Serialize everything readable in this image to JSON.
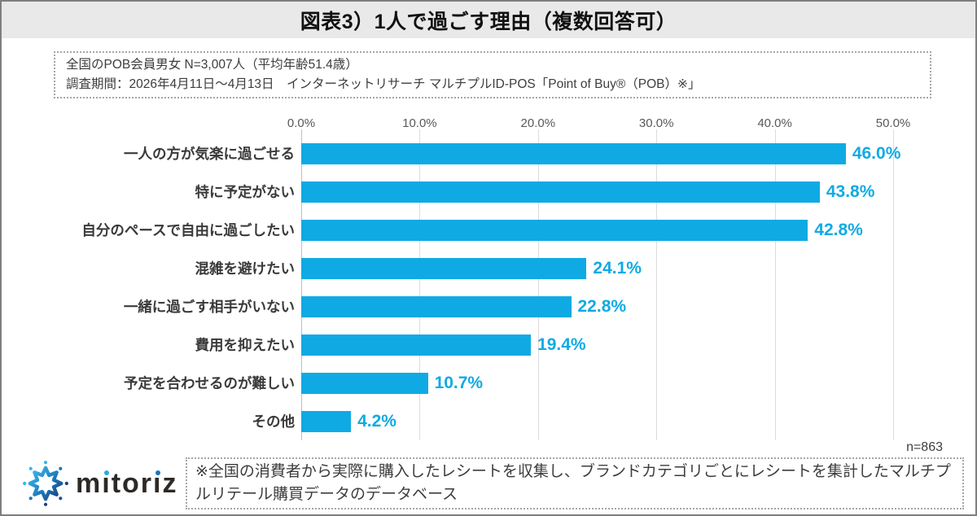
{
  "title": "図表3）1人で過ごす理由（複数回答可）",
  "survey_box": {
    "line1": "全国のPOB会員男女 N=3,007人（平均年齢51.4歳）",
    "line2": "調査期間：2026年4月11日～4月13日　インターネットリサーチ マルチプルID-POS「Point of Buy®（POB）※」"
  },
  "chart_data": {
    "type": "bar",
    "orientation": "horizontal",
    "title": "図表3）1人で過ごす理由（複数回答可）",
    "categories": [
      "一人の方が気楽に過ごせる",
      "特に予定がない",
      "自分のペースで自由に過ごしたい",
      "混雑を避けたい",
      "一緒に過ごす相手がいない",
      "費用を抑えたい",
      "予定を合わせるのが難しい",
      "その他"
    ],
    "values": [
      46.0,
      43.8,
      42.8,
      24.1,
      22.8,
      19.4,
      10.7,
      4.2
    ],
    "value_labels": [
      "46.0%",
      "43.8%",
      "42.8%",
      "24.1%",
      "22.8%",
      "19.4%",
      "10.7%",
      "4.2%"
    ],
    "x_ticks": [
      "0.0%",
      "10.0%",
      "20.0%",
      "30.0%",
      "40.0%",
      "50.0%"
    ],
    "x_tick_values": [
      0,
      10,
      20,
      30,
      40,
      50
    ],
    "xlim": [
      0,
      50
    ],
    "grid": true,
    "legend": false,
    "bar_color": "#0faae4",
    "value_label_color": "#0faae4"
  },
  "sample_size": "n=863",
  "footnote": "※全国の消費者から実際に購入したレシートを収集し、ブランドカテゴリごとにレシートを集計したマルチプルリテール購買データのデータベース",
  "logo": {
    "wordmark": "mitoriz",
    "icon": "burst-star-icon",
    "i_dot_colors": [
      "#29abe2",
      "#1b75bb"
    ],
    "star_gradient": [
      "#3fc1f0",
      "#1a3f80"
    ],
    "dot_colors": [
      "#35b6ea",
      "#2273b6",
      "#1a3f80",
      "#1c4f97",
      "#1a3f80",
      "#2273b6",
      "#35b6ea",
      "#35b6ea"
    ]
  }
}
